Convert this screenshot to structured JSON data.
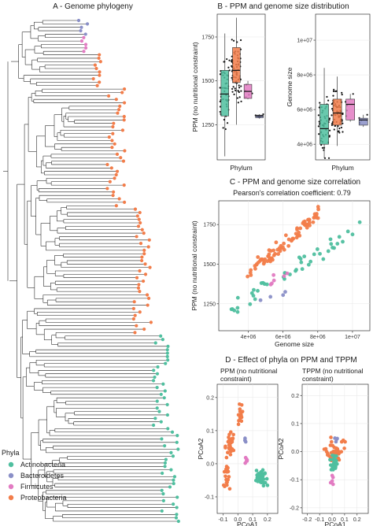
{
  "figure": {
    "colors": {
      "Actinobacteria": "#4fbf9f",
      "Bacteroidetes": "#8a8fc7",
      "Firmicutes": "#e27bc2",
      "Proteobacteria": "#f27d4a"
    }
  },
  "chart_data": [
    {
      "panel": "A",
      "type": "tree",
      "title": "A - Genome phylogeny",
      "legend": {
        "title": "Phyla",
        "placement": "bottom-left",
        "entries": [
          "Actinobacteria",
          "Bacteroidetes",
          "Firmicutes",
          "Proteobacteria"
        ]
      },
      "tips": {
        "Bacteroidetes": 5,
        "Firmicutes": 5,
        "Proteobacteria": 82,
        "Actinobacteria": 55
      }
    },
    {
      "panel": "B1",
      "type": "box",
      "title": "B - PPM and genome size distribution",
      "xlabel": "Phylum",
      "ylabel": "PPM (no nutritional constraint)",
      "ylim": [
        1050,
        1880
      ],
      "yticks": [
        "1250",
        "1500",
        "1750"
      ],
      "boxes": [
        {
          "name": "Actinobacteria",
          "min": 1070,
          "q1": 1300,
          "median": 1425,
          "q3": 1560,
          "max": 1770
        },
        {
          "name": "Proteobacteria",
          "min": 1250,
          "q1": 1490,
          "median": 1560,
          "q3": 1690,
          "max": 1860
        },
        {
          "name": "Firmicutes",
          "min": 1395,
          "q1": 1400,
          "median": 1440,
          "q3": 1480,
          "max": 1500
        },
        {
          "name": "Bacteroidetes",
          "min": 1285,
          "q1": 1290,
          "median": 1300,
          "q3": 1305,
          "max": 1310
        }
      ]
    },
    {
      "panel": "B2",
      "type": "box",
      "xlabel": "Phylum",
      "ylabel": "Genome size",
      "ylim": [
        3100000,
        11500000
      ],
      "yticks": [
        "4e+06",
        "6e+06",
        "8e+06",
        "1e+07"
      ],
      "boxes": [
        {
          "name": "Actinobacteria",
          "min": 3200000,
          "q1": 4000000,
          "median": 4900000,
          "q3": 6300000,
          "max": 8400000
        },
        {
          "name": "Proteobacteria",
          "min": 3900000,
          "q1": 5100000,
          "median": 5800000,
          "q3": 6600000,
          "max": 7900000
        },
        {
          "name": "Firmicutes",
          "min": 5300000,
          "q1": 5400000,
          "median": 6300000,
          "q3": 6600000,
          "max": 6900000
        },
        {
          "name": "Bacteroidetes",
          "min": 5000000,
          "q1": 5100000,
          "median": 5400000,
          "q3": 5500000,
          "max": 5700000
        }
      ]
    },
    {
      "panel": "C",
      "type": "scatter",
      "title": "C - PPM and genome size correlation",
      "subtitle": "Pearson's correlation coefficient: 0.79",
      "xlabel": "Genome size",
      "ylabel": "PPM (no nutritional constraint)",
      "xlim": [
        2300000,
        11000000
      ],
      "ylim": [
        1080,
        1900
      ],
      "xticks": [
        "4e+06",
        "6e+06",
        "8e+06",
        "1e+07"
      ],
      "yticks": [
        "1250",
        "1500",
        "1750"
      ]
    },
    {
      "panel": "D1",
      "type": "scatter",
      "title": "D - Effect of phyla on PPM and TPPM",
      "subtitle": "PPM (no nutritional constraint)",
      "xlabel": "PCoA1",
      "ylabel": "PCoA2",
      "xlim": [
        -0.14,
        0.27
      ],
      "ylim": [
        -0.15,
        0.24
      ],
      "xticks": [
        "-0.1",
        "0.0",
        "0.1",
        "0.2"
      ],
      "yticks": [
        "-0.1",
        "0.0",
        "0.1",
        "0.2"
      ]
    },
    {
      "panel": "D2",
      "type": "scatter",
      "subtitle": "TPPM (no nutritional constraint)",
      "xlabel": "PCoA1",
      "ylabel": "PCoA2",
      "xlim": [
        -0.24,
        0.29
      ],
      "ylim": [
        -0.22,
        0.24
      ],
      "xticks": [
        "-0.2",
        "-0.1",
        "0.0",
        "0.1",
        "0.2"
      ],
      "yticks": [
        "-0.2",
        "-0.1",
        "0.0",
        "0.1",
        "0.2"
      ]
    }
  ]
}
